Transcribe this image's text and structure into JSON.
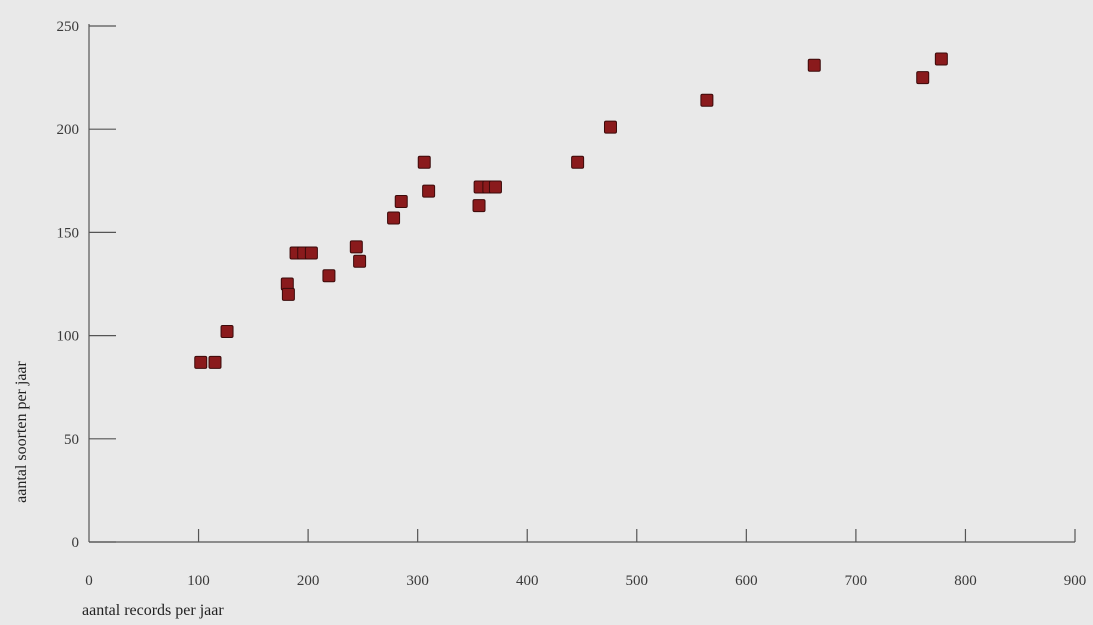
{
  "chart_data": {
    "type": "scatter",
    "title": "",
    "xlabel": "aantal records per jaar",
    "ylabel": "aantal soorten per jaar",
    "xlim": [
      0,
      900
    ],
    "ylim": [
      0,
      250
    ],
    "xticks": [
      0,
      100,
      200,
      300,
      400,
      500,
      600,
      700,
      800,
      900
    ],
    "yticks": [
      0,
      50,
      100,
      150,
      200,
      250
    ],
    "grid": false,
    "marker_color": "#8a1a1c",
    "points": [
      {
        "x": 102,
        "y": 87
      },
      {
        "x": 115,
        "y": 87
      },
      {
        "x": 126,
        "y": 102
      },
      {
        "x": 181,
        "y": 125
      },
      {
        "x": 182,
        "y": 120
      },
      {
        "x": 189,
        "y": 140
      },
      {
        "x": 196,
        "y": 140
      },
      {
        "x": 203,
        "y": 140
      },
      {
        "x": 219,
        "y": 129
      },
      {
        "x": 244,
        "y": 143
      },
      {
        "x": 247,
        "y": 136
      },
      {
        "x": 278,
        "y": 157
      },
      {
        "x": 285,
        "y": 165
      },
      {
        "x": 306,
        "y": 184
      },
      {
        "x": 310,
        "y": 170
      },
      {
        "x": 356,
        "y": 163
      },
      {
        "x": 357,
        "y": 172
      },
      {
        "x": 365,
        "y": 172
      },
      {
        "x": 371,
        "y": 172
      },
      {
        "x": 446,
        "y": 184
      },
      {
        "x": 476,
        "y": 201
      },
      {
        "x": 564,
        "y": 214
      },
      {
        "x": 662,
        "y": 231
      },
      {
        "x": 761,
        "y": 225
      },
      {
        "x": 778,
        "y": 234
      }
    ]
  }
}
